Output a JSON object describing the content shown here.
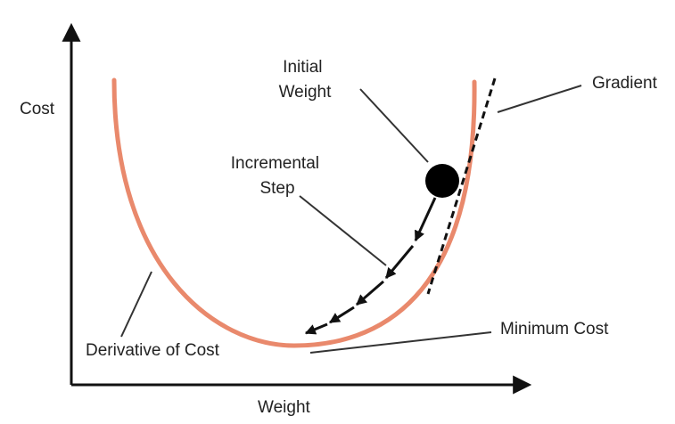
{
  "labels": {
    "y_axis": "Cost",
    "x_axis": "Weight",
    "initial_weight_line1": "Initial",
    "initial_weight_line2": "Weight",
    "gradient": "Gradient",
    "incremental_step_line1": "Incremental",
    "incremental_step_line2": "Step",
    "minimum_cost": "Minimum Cost",
    "derivative_of_cost": "Derivative of Cost"
  },
  "colors": {
    "curve": "#e9896c",
    "ink": "#111111",
    "text": "#222222",
    "leader": "#333333"
  }
}
